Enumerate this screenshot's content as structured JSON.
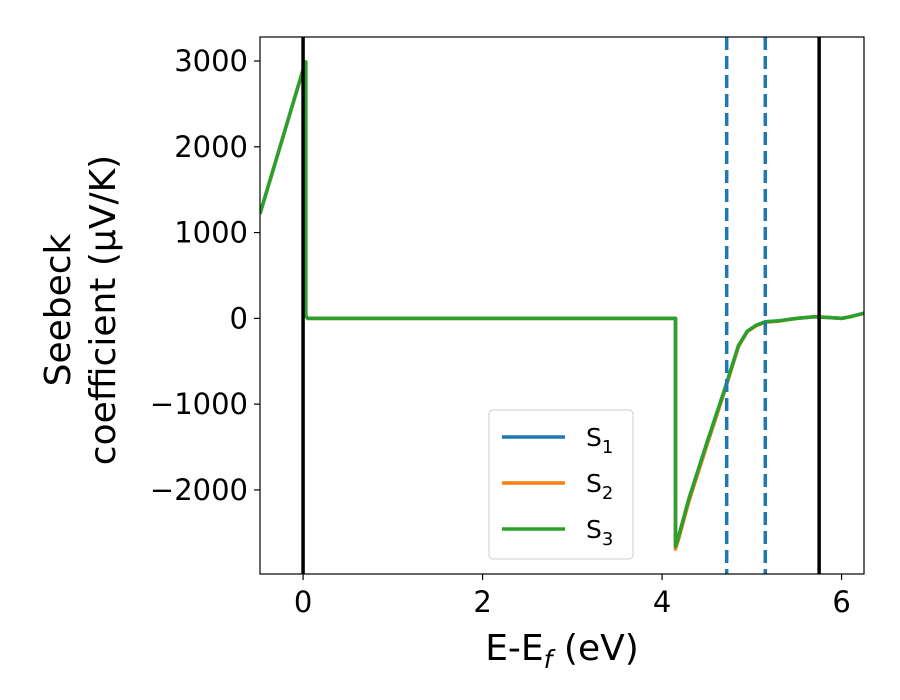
{
  "chart_data": {
    "type": "line",
    "xlabel": "E-E",
    "xlabel_sub": "f",
    "xlabel_unit": " (eV)",
    "ylabel_line1": "Seebeck",
    "ylabel_line2": "coefficient  (μV/K)",
    "xlim": [
      -0.48,
      6.25
    ],
    "ylim": [
      -2980,
      3280
    ],
    "xticks": [
      0,
      2,
      4,
      6
    ],
    "xtick_labels": [
      "0",
      "2",
      "4",
      "6"
    ],
    "yticks": [
      -2000,
      -1000,
      0,
      1000,
      2000,
      3000
    ],
    "ytick_labels": [
      "−2000",
      "−1000",
      "0",
      "1000",
      "2000",
      "3000"
    ],
    "legend_position": "lower-center",
    "series": [
      {
        "name": "S",
        "sub": "1",
        "color": "#1f77b4",
        "x": [
          -0.48,
          0.0,
          0.03,
          0.03,
          0.05,
          4.15,
          4.15,
          4.18,
          4.3,
          4.5,
          4.7,
          4.85,
          4.95,
          5.05,
          5.15,
          5.3,
          5.5,
          5.7,
          5.85,
          6.0,
          6.1,
          6.25
        ],
        "y": [
          1220,
          2900,
          2990,
          30,
          0,
          0,
          -2660,
          -2560,
          -2100,
          -1450,
          -820,
          -320,
          -150,
          -80,
          -40,
          -30,
          0,
          20,
          10,
          0,
          20,
          60
        ]
      },
      {
        "name": "S",
        "sub": "2",
        "color": "#ff7f0e",
        "x": [
          -0.48,
          0.0,
          0.03,
          0.03,
          0.05,
          4.15,
          4.15,
          4.18,
          4.3,
          4.5,
          4.7,
          4.85,
          4.95,
          5.05,
          5.15,
          5.3,
          5.5,
          5.7,
          5.85,
          6.0,
          6.1,
          6.25
        ],
        "y": [
          1220,
          2900,
          2990,
          30,
          0,
          0,
          -2690,
          -2590,
          -2130,
          -1480,
          -840,
          -330,
          -155,
          -85,
          -45,
          -32,
          0,
          20,
          10,
          0,
          20,
          60
        ]
      },
      {
        "name": "S",
        "sub": "3",
        "color": "#2ca02c",
        "x": [
          -0.48,
          0.0,
          0.03,
          0.03,
          0.05,
          4.15,
          4.15,
          4.18,
          4.3,
          4.5,
          4.7,
          4.85,
          4.95,
          5.05,
          5.15,
          5.3,
          5.5,
          5.7,
          5.85,
          6.0,
          6.1,
          6.25
        ],
        "y": [
          1220,
          2900,
          2990,
          30,
          0,
          0,
          -2660,
          -2560,
          -2100,
          -1450,
          -820,
          -320,
          -150,
          -80,
          -40,
          -30,
          0,
          20,
          10,
          0,
          20,
          60
        ]
      }
    ],
    "vlines": [
      {
        "x": 0.0,
        "style": "solid",
        "color": "#000000"
      },
      {
        "x": 5.75,
        "style": "solid",
        "color": "#000000"
      },
      {
        "x": 4.72,
        "style": "dashed",
        "color": "#1f77b4"
      },
      {
        "x": 5.15,
        "style": "dashed",
        "color": "#1f77b4"
      }
    ]
  }
}
